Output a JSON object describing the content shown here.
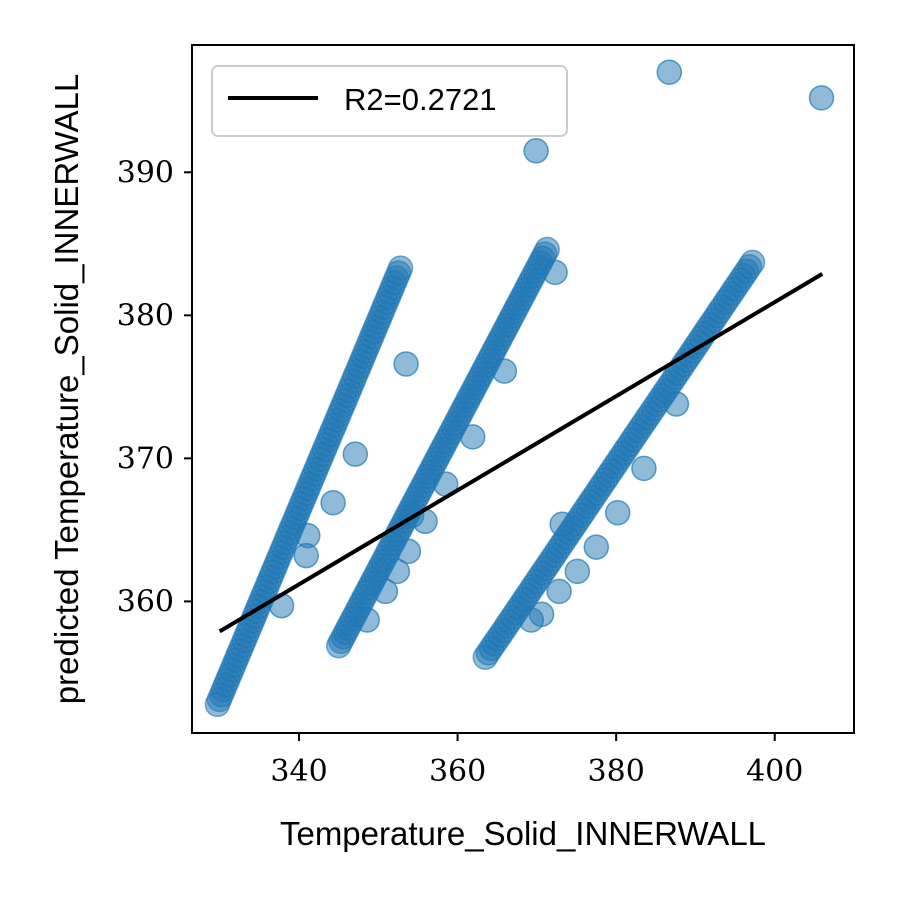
{
  "chart_data": {
    "type": "scatter",
    "title": "",
    "xlabel": "Temperature_Solid_INNERWALL",
    "ylabel": "predicted Temperature_Solid_INNERWALL",
    "xlim": [
      326.5,
      410
    ],
    "ylim": [
      350.8,
      398.9
    ],
    "xticks": [
      340,
      360,
      380,
      400
    ],
    "yticks": [
      360,
      370,
      380,
      390
    ],
    "grid": false,
    "legend": {
      "placement": "top-left",
      "entries": [
        "R2=0.2721"
      ]
    },
    "colors": {
      "points": "#1f77b4",
      "fit_line": "#000000"
    },
    "series": [
      {
        "kind": "scatter",
        "bands": [
          {
            "x": [
              329.7,
              352.8
            ],
            "y": [
              352.8,
              383.3
            ]
          },
          {
            "x": [
              345.0,
              371.3
            ],
            "y": [
              356.9,
              384.6
            ]
          },
          {
            "x": [
              363.5,
              397.2
            ],
            "y": [
              356.1,
              383.7
            ]
          }
        ],
        "points": [
          [
            386.7,
            397.0
          ],
          [
            405.9,
            395.2
          ],
          [
            369.9,
            391.5
          ],
          [
            372.3,
            383.0
          ],
          [
            353.5,
            376.6
          ],
          [
            365.9,
            376.1
          ],
          [
            361.9,
            371.5
          ],
          [
            347.1,
            370.3
          ],
          [
            358.5,
            368.2
          ],
          [
            387.6,
            373.8
          ],
          [
            383.5,
            369.3
          ],
          [
            344.3,
            366.9
          ],
          [
            354.2,
            366.0
          ],
          [
            355.9,
            365.6
          ],
          [
            373.2,
            365.4
          ],
          [
            380.2,
            366.2
          ],
          [
            341.1,
            364.6
          ],
          [
            353.8,
            363.5
          ],
          [
            377.5,
            363.8
          ],
          [
            340.9,
            363.2
          ],
          [
            352.4,
            362.1
          ],
          [
            375.1,
            362.1
          ],
          [
            372.8,
            360.7
          ],
          [
            350.9,
            360.7
          ],
          [
            370.6,
            359.1
          ],
          [
            337.8,
            359.7
          ],
          [
            369.3,
            358.7
          ],
          [
            348.6,
            358.7
          ]
        ]
      },
      {
        "kind": "line",
        "name": "R2=0.2721",
        "x": [
          330.0,
          406.0
        ],
        "y": [
          357.9,
          382.9
        ]
      }
    ]
  }
}
